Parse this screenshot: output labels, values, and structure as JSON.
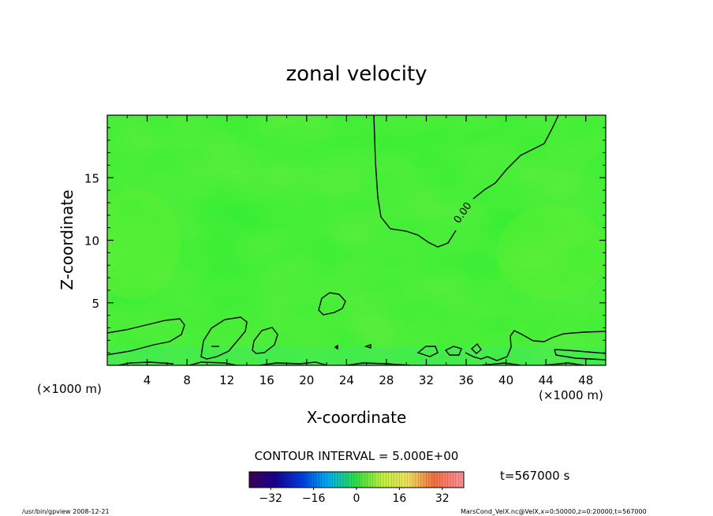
{
  "chart_data": {
    "type": "heatmap",
    "title": "zonal velocity",
    "xlabel": "X-coordinate",
    "ylabel": "Z-coordinate",
    "x_unit_left": "(×1000 m)",
    "x_unit_right": "(×1000 m)",
    "xlim": [
      0,
      50
    ],
    "ylim": [
      0,
      20
    ],
    "x_ticks": [
      4,
      8,
      12,
      16,
      20,
      24,
      28,
      32,
      36,
      40,
      44,
      48
    ],
    "y_ticks": [
      5,
      10,
      15
    ],
    "contour_label": "0.00",
    "contour_level": 0,
    "contour_interval_text": "CONTOUR INTERVAL = 5.000E+00",
    "time_text": "t=567000 s",
    "colorbar": {
      "vmin": -40,
      "vmax": 40,
      "ticks": [
        -32,
        -16,
        0,
        16,
        32
      ],
      "tick_labels": [
        "−32",
        "−16",
        "0",
        "16",
        "32"
      ]
    },
    "field_color": "#33ee33",
    "contour_color": "#000000"
  },
  "footer": {
    "left": "/usr/bin/gpview   2008-12-21",
    "right": "MarsCond_VelX.nc@VelX,x=0:50000,z=0:20000,t=567000"
  }
}
